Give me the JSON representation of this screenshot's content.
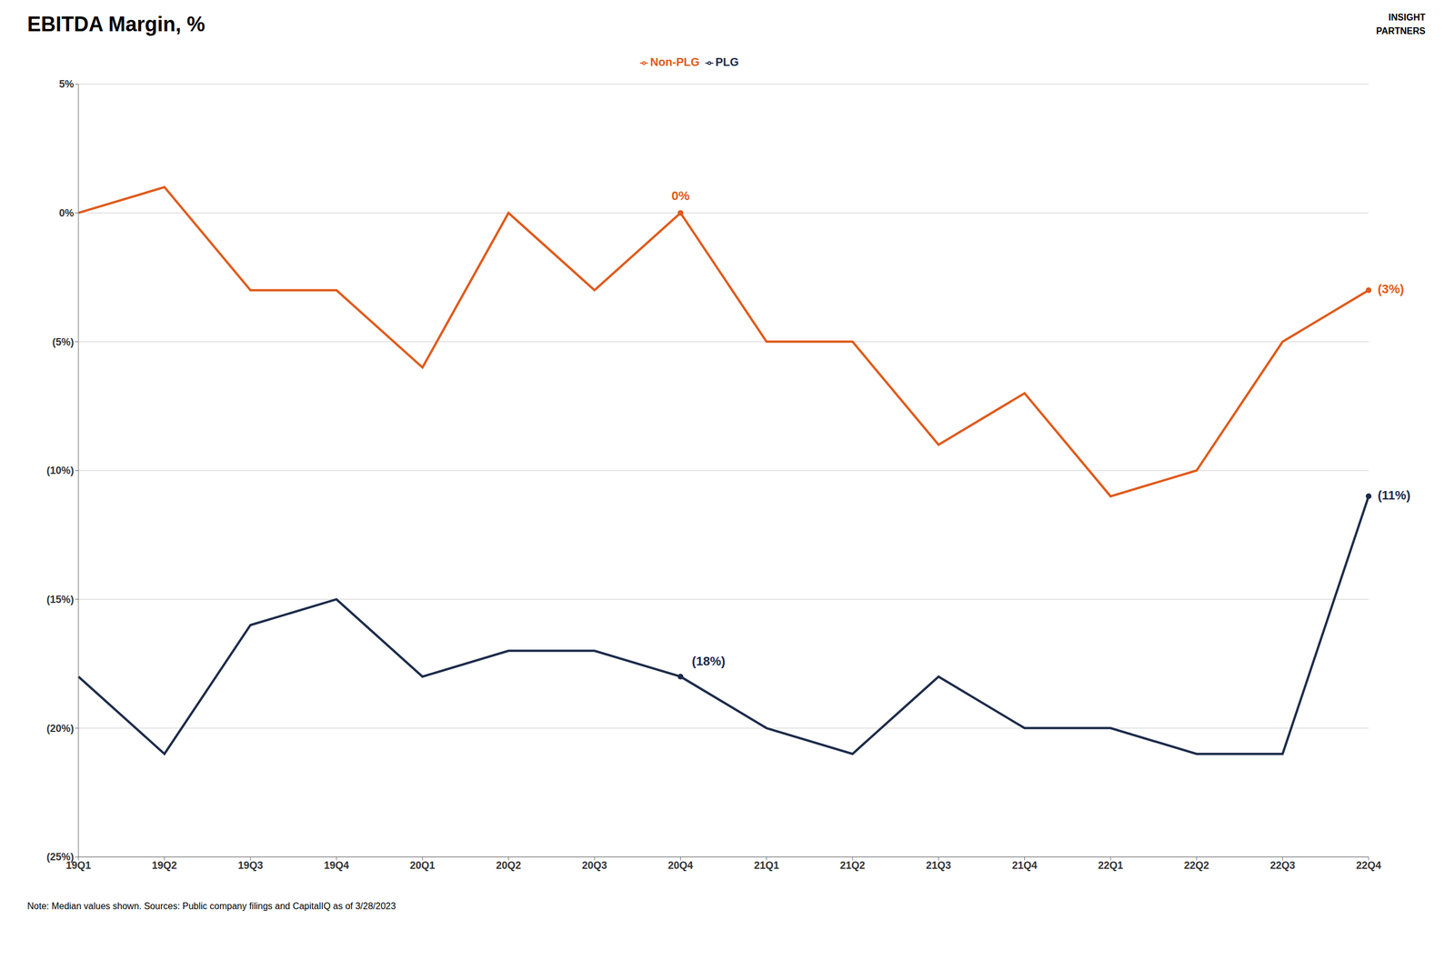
{
  "chart_data": {
    "type": "line",
    "title": "EBITDA Margin, %",
    "categories": [
      "19Q1",
      "19Q2",
      "19Q3",
      "19Q4",
      "20Q1",
      "20Q2",
      "20Q3",
      "20Q4",
      "21Q1",
      "21Q2",
      "21Q3",
      "21Q4",
      "22Q1",
      "22Q2",
      "22Q3",
      "22Q4"
    ],
    "series": [
      {
        "name": "PLG",
        "color": "#1c2b4a",
        "values": [
          -18,
          -21,
          -16,
          -15,
          -18,
          -17,
          -17,
          -18,
          -20,
          -21,
          -18,
          -20,
          -20,
          -21,
          -21,
          -11
        ]
      },
      {
        "name": "Non-PLG",
        "color": "#e05a1a",
        "values": [
          0,
          1,
          -3,
          -3,
          -6,
          0,
          -3,
          0,
          -5,
          -5,
          -9,
          -7,
          -11,
          -10,
          -5,
          -3
        ]
      }
    ],
    "ylim": [
      -25,
      5
    ],
    "yticks": [
      {
        "value": 5,
        "label": "5%"
      },
      {
        "value": 0,
        "label": "0%"
      },
      {
        "value": -5,
        "label": "(5%)"
      },
      {
        "value": -10,
        "label": "(10%)"
      },
      {
        "value": -15,
        "label": "(15%)"
      },
      {
        "value": -20,
        "label": "(20%)"
      },
      {
        "value": -25,
        "label": "(25%)"
      }
    ],
    "grid": true,
    "legend": "top",
    "annotations": [
      {
        "text": "(18%)",
        "x": "20Q4",
        "y": -18,
        "series": "PLG"
      },
      {
        "text": "(11%)",
        "x": "22Q4",
        "y": -11,
        "series": "PLG"
      },
      {
        "text": "0%",
        "x": "20Q4",
        "y": 0,
        "series": "Non-PLG"
      },
      {
        "text": "(3%)",
        "x": "22Q4",
        "y": -3,
        "series": "Non-PLG"
      }
    ],
    "note": "Note: Median values shown. Sources: Public company filings and CapitalIQ as of 3/28/2023",
    "logo_text": "INSIGHT\nPARTNERS"
  }
}
